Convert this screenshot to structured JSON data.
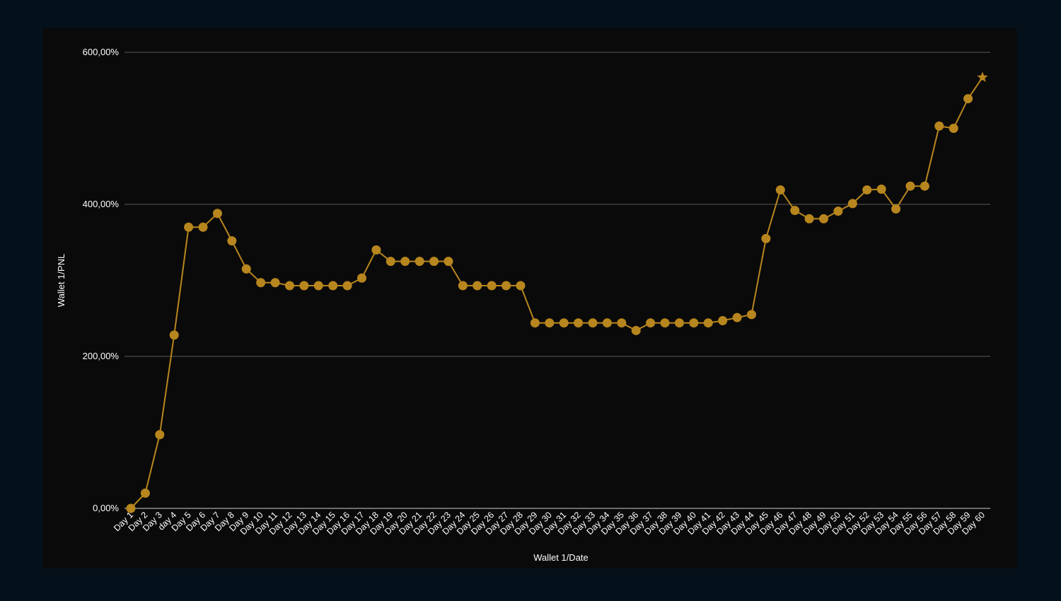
{
  "chart_data": {
    "type": "line",
    "xlabel": "Wallet 1/Date",
    "ylabel": "Wallet 1/PNL",
    "ylim": [
      0,
      600
    ],
    "yticks": [
      0,
      200,
      400,
      600
    ],
    "ytick_labels": [
      "0,00%",
      "200,00%",
      "400,00%",
      "600,00%"
    ],
    "grid": "horizontal",
    "color": "#b8861e",
    "categories": [
      "Day 1",
      "Day 2",
      "Day 3",
      "day 4",
      "Day 5",
      "Day 6",
      "Day 7",
      "Day 8",
      "Day 9",
      "Day 10",
      "Day 11",
      "Day 12",
      "Day 13",
      "Day 14",
      "Day 15",
      "Day 16",
      "Day 17",
      "Day 18",
      "Day 19",
      "Day 20",
      "Day 21",
      "Day 22",
      "Day 23",
      "Day 24",
      "Day 25",
      "Day 26",
      "Day 27",
      "Day 28",
      "Day 29",
      "Day 30",
      "Day 31",
      "Day 32",
      "Day 33",
      "Day 34",
      "Day 35",
      "Day 36",
      "Day 37",
      "Day 38",
      "Day 39",
      "Day 40",
      "Day 41",
      "Day 42",
      "Day 43",
      "Day 44",
      "Day 45",
      "Day 46",
      "Day 47",
      "Day 48",
      "Day 49",
      "Day 50",
      "Day 51",
      "Day 52",
      "Day 53",
      "Day 54",
      "Day 55",
      "Day 56",
      "Day 57",
      "Day 58",
      "Day 59",
      "Day 60"
    ],
    "series": [
      {
        "values": [
          0,
          20,
          97,
          228,
          370,
          370,
          388,
          352,
          315,
          297,
          297,
          293,
          293,
          293,
          293,
          293,
          303,
          340,
          325,
          325,
          325,
          325,
          325,
          293,
          293,
          293,
          293,
          293,
          244,
          244,
          244,
          244,
          244,
          244,
          244,
          234,
          244,
          244,
          244,
          244,
          244,
          247,
          251,
          255,
          355,
          419,
          392,
          381,
          381,
          391,
          401,
          419,
          420,
          394,
          424,
          424,
          503,
          500,
          539,
          567
        ],
        "last_marker": "star"
      }
    ]
  }
}
